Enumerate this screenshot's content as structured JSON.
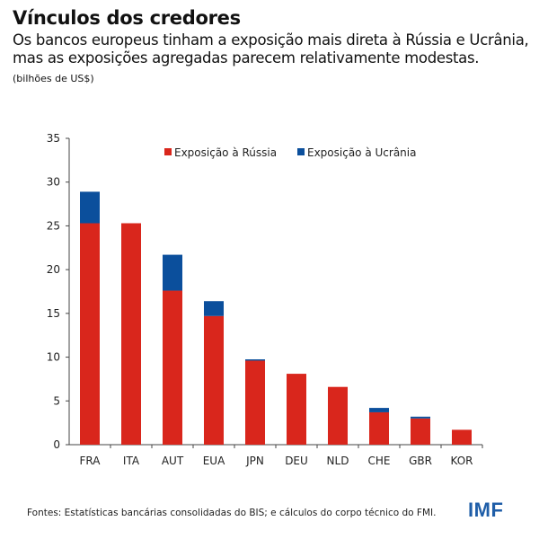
{
  "header": {
    "title": "Vínculos dos credores",
    "subtitle": "Os bancos europeus tinham a exposição mais direta à Rússia e Ucrânia, mas as exposições agregadas parecem relativamente modestas.",
    "units": "(bilhões de US$)"
  },
  "footer": {
    "source": "Fontes: Estatísticas bancárias consolidadas do BIS; e cálculos do corpo técnico do FMI.",
    "logo": "IMF"
  },
  "chart_data": {
    "type": "bar",
    "stacked": true,
    "title": "Vínculos dos credores",
    "xlabel": "",
    "ylabel": "bilhões de US$",
    "ylim": [
      0,
      35
    ],
    "yticks": [
      0,
      5,
      10,
      15,
      20,
      25,
      30,
      35
    ],
    "grid": false,
    "legend_position": "top",
    "categories": [
      "FRA",
      "ITA",
      "AUT",
      "EUA",
      "JPN",
      "DEU",
      "NLD",
      "CHE",
      "GBR",
      "KOR"
    ],
    "series": [
      {
        "name": "Exposição à Rússia",
        "color": "#d9261c",
        "values": [
          25.3,
          25.3,
          17.6,
          14.7,
          9.6,
          8.1,
          6.6,
          3.7,
          3.0,
          1.7
        ]
      },
      {
        "name": "Exposição à Ucrânia",
        "color": "#0b4f9c",
        "values": [
          3.6,
          0,
          4.1,
          1.7,
          0.15,
          0,
          0,
          0.5,
          0.2,
          0
        ]
      }
    ]
  }
}
